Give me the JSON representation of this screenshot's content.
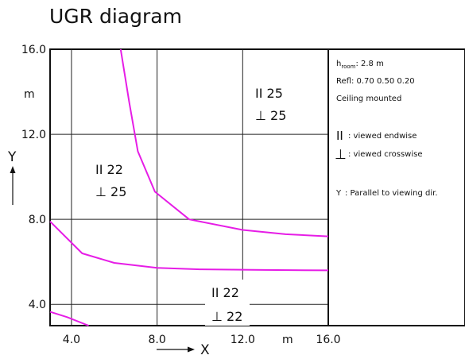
{
  "chart_data": {
    "type": "line",
    "title": "UGR diagram",
    "xlabel": "X",
    "ylabel": "Y",
    "unit": "m",
    "xlim": [
      3,
      16
    ],
    "ylim": [
      3,
      16
    ],
    "x_ticks": [
      "4.0",
      "8.0",
      "12.0",
      "16.0"
    ],
    "y_ticks": [
      "16.0",
      "12.0",
      "8.0",
      "4.0"
    ],
    "grid": true,
    "line_color": "#e61de6",
    "series": [
      {
        "values": [
          [
            6.3,
            16.0
          ],
          [
            6.7,
            13.5
          ],
          [
            7.1,
            11.2
          ],
          [
            7.9,
            9.3
          ],
          [
            9.5,
            8.0
          ],
          [
            12.0,
            7.5
          ],
          [
            14.0,
            7.3
          ],
          [
            16.0,
            7.2
          ]
        ]
      },
      {
        "values": [
          [
            3.0,
            7.9
          ],
          [
            4.5,
            6.4
          ],
          [
            6.0,
            5.95
          ],
          [
            8.0,
            5.72
          ],
          [
            10.0,
            5.65
          ],
          [
            13.0,
            5.62
          ],
          [
            16.0,
            5.6
          ]
        ]
      },
      {
        "values": [
          [
            3.0,
            3.65
          ],
          [
            3.8,
            3.4
          ],
          [
            4.8,
            3.0
          ]
        ]
      }
    ],
    "zone_labels": [
      {
        "endwise": "II 25",
        "crosswise": "⊥ 25"
      },
      {
        "endwise": "II 22",
        "crosswise": "⊥ 25"
      },
      {
        "endwise": "II 22",
        "crosswise": "⊥ 22"
      }
    ],
    "legend": {
      "h_prefix": "h",
      "h_sub": "room",
      "h_value": ": 2.8 m",
      "refl": "Refl: 0.70 0.50 0.20",
      "mounting": "Ceiling mounted",
      "endwise_symbol": "II",
      "endwise_text": ": viewed endwise",
      "crosswise_symbol": "⊥",
      "crosswise_text": ": viewed crosswise",
      "y_symbol": "Y",
      "y_text": ": Parallel to viewing dir."
    }
  }
}
